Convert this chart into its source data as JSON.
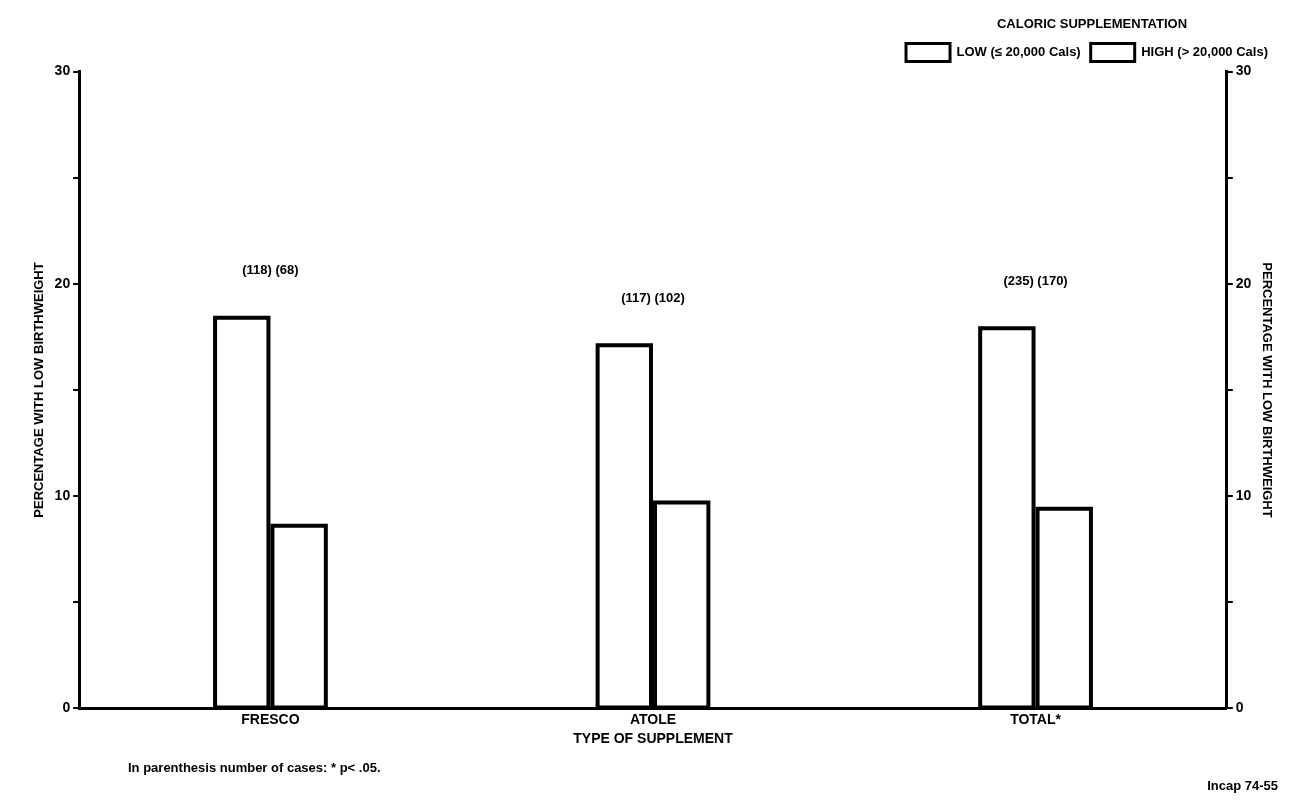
{
  "chart_data": {
    "type": "bar",
    "categories": [
      "FRESCO",
      "ATOLE",
      "TOTAL*"
    ],
    "series": [
      {
        "name": "LOW (≤ 20,000 Cals)",
        "color": "#000000",
        "values": [
          18.5,
          17.2,
          18.0
        ]
      },
      {
        "name": "HIGH (> 20,000 Cals)",
        "color": "#000000",
        "values": [
          8.7,
          9.8,
          9.5
        ]
      }
    ],
    "xlabel": "TYPE OF SUPPLEMENT",
    "ylabel": "PERCENTAGE WITH LOW BIRTHWEIGHT",
    "y2label": "PERCENTAGE WITH LOW BIRTHWEIGHT",
    "legend_title": "CALORIC SUPPLEMENTATION",
    "legend": "top right",
    "grid": false,
    "ylim": [
      0,
      30
    ],
    "yticks": [
      0,
      {
        "value": 5,
        "label": null
      },
      10,
      {
        "value": 15,
        "label": null
      },
      20,
      {
        "value": 25,
        "label": null
      },
      30
    ],
    "y2lim": [
      0,
      30
    ],
    "y2ticks": [
      0,
      {
        "value": 5,
        "label": null
      },
      10,
      {
        "value": 15,
        "label": null
      },
      20,
      {
        "value": 25,
        "label": null
      },
      30
    ],
    "annotations": [
      "(118) (68)",
      "(117) (102)",
      "(235) (170)",
      "In parenthesis number of cases: * p< .05.",
      "Incap 74-55"
    ]
  }
}
